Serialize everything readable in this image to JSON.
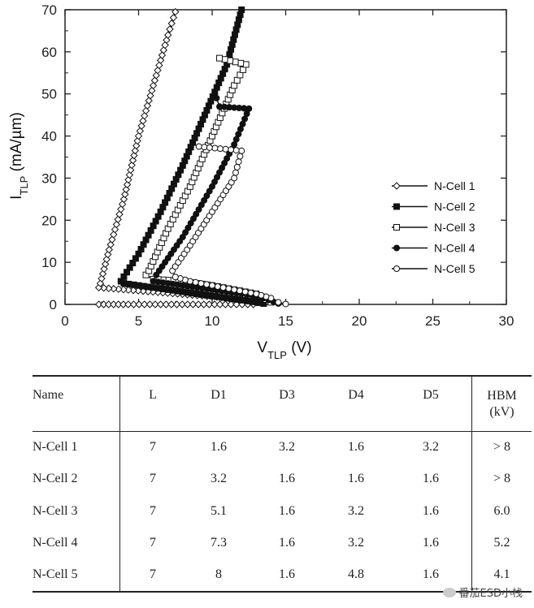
{
  "chart_data": {
    "type": "scatter-line",
    "title": "",
    "xlabel_main": "V",
    "xlabel_sub": "TLP",
    "xlabel_unit": " (V)",
    "ylabel_main": "I",
    "ylabel_sub": "TLP",
    "ylabel_unit": " (mA/µm)",
    "xlim": [
      0,
      30
    ],
    "ylim": [
      0,
      70
    ],
    "xticks": [
      0,
      5,
      10,
      15,
      20,
      25,
      30
    ],
    "yticks": [
      0,
      10,
      20,
      30,
      40,
      50,
      60,
      70
    ],
    "xtick_labels": [
      "0",
      "5",
      "10",
      "15",
      "20",
      "25",
      "30"
    ],
    "ytick_labels": [
      "0",
      "10",
      "20",
      "30",
      "40",
      "50",
      "60",
      "70"
    ],
    "legend_position": "center-right",
    "series": [
      {
        "name": "N-Cell 1",
        "marker": "diamond-open",
        "x": [
          2.3,
          4.3,
          6.5,
          8.7,
          10.9,
          12.8,
          13.4,
          13.0,
          2.3,
          2.4,
          3.0,
          4.0,
          5.0,
          6.0,
          7.0,
          7.5
        ],
        "y": [
          0,
          0,
          0,
          0,
          0,
          0,
          0.3,
          1.0,
          4.0,
          5,
          13,
          25,
          40,
          52,
          64,
          69.5
        ]
      },
      {
        "name": "N-Cell 2",
        "marker": "square-filled",
        "x": [
          13.5,
          12.0,
          10.0,
          8.0,
          6.0,
          4.0,
          3.8,
          5.0,
          6.5,
          8.0,
          9.5,
          11.0,
          12.0
        ],
        "y": [
          0.2,
          1.0,
          2.0,
          3.0,
          4.0,
          5.0,
          5.5,
          12,
          22,
          33,
          45,
          57,
          70
        ]
      },
      {
        "name": "N-Cell 3",
        "marker": "square-open",
        "x": [
          14.0,
          13.0,
          11.5,
          10.0,
          8.0,
          6.0,
          5.5,
          5.7,
          7.0,
          8.5,
          10.0,
          11.5,
          12.3,
          10.5
        ],
        "y": [
          0.5,
          2.5,
          3.5,
          4.5,
          5.5,
          6.0,
          7.0,
          8.0,
          18,
          28,
          40,
          52,
          57,
          58.5
        ]
      },
      {
        "name": "N-Cell 4",
        "marker": "circle-filled",
        "x": [
          14.5,
          13.5,
          12.0,
          10.0,
          8.0,
          6.0,
          6.2,
          8.0,
          10.0,
          11.5,
          12.5,
          10.5,
          10.3
        ],
        "y": [
          0.2,
          1.5,
          2.5,
          3.5,
          4.5,
          5.5,
          7.0,
          16,
          28,
          38,
          46.5,
          47,
          49
        ]
      },
      {
        "name": "N-Cell 5",
        "marker": "circle-open",
        "x": [
          15.0,
          14.5,
          14.0,
          13.0,
          11.5,
          10.0,
          8.5,
          7.5,
          7.3,
          7.5,
          8.5,
          10.0,
          11.5,
          12.0,
          9.1
        ],
        "y": [
          0.1,
          0.5,
          1.5,
          2.5,
          3.5,
          4.5,
          5.5,
          6.5,
          8.0,
          9.0,
          14,
          22,
          30,
          36.5,
          37.5
        ]
      }
    ]
  },
  "table": {
    "headers": [
      "Name",
      "L",
      "D1",
      "D3",
      "D4",
      "D5",
      "HBM",
      "(kV)"
    ],
    "rows": [
      [
        "N-Cell 1",
        "7",
        "1.6",
        "3.2",
        "1.6",
        "3.2",
        "> 8"
      ],
      [
        "N-Cell 2",
        "7",
        "3.2",
        "1.6",
        "1.6",
        "1.6",
        "> 8"
      ],
      [
        "N-Cell 3",
        "7",
        "5.1",
        "1.6",
        "3.2",
        "1.6",
        "6.0"
      ],
      [
        "N-Cell 4",
        "7",
        "7.3",
        "1.6",
        "3.2",
        "1.6",
        "5.2"
      ],
      [
        "N-Cell 5",
        "7",
        "8",
        "1.6",
        "4.8",
        "1.6",
        "4.1"
      ]
    ]
  },
  "watermark": "番茄ESD小栈"
}
